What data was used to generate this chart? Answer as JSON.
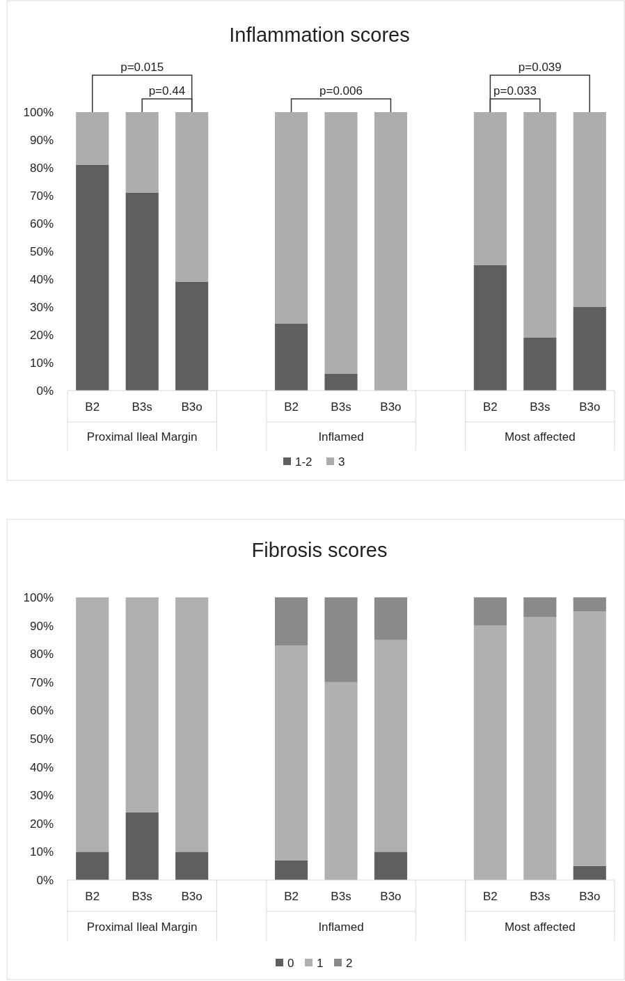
{
  "chart_data": [
    {
      "type": "bar",
      "title": "Inflammation scores",
      "stacked": true,
      "legend": "bottom",
      "categories": [
        "B2",
        "B3s",
        "B3o",
        null,
        "B2",
        "B3s",
        "B3o",
        null,
        "B2",
        "B3s",
        "B3o"
      ],
      "series": [
        {
          "name": "1-2",
          "color": "#5f5f5f",
          "values": [
            81,
            71,
            39,
            null,
            24,
            6,
            0,
            null,
            45,
            19,
            30
          ]
        },
        {
          "name": "3",
          "color": "#adadad",
          "values": [
            19,
            29,
            61,
            null,
            76,
            94,
            100,
            null,
            55,
            81,
            70
          ]
        }
      ],
      "ylim": [
        0,
        100
      ],
      "yticks": [
        {
          "value": 0,
          "label": "0%"
        },
        {
          "value": 10,
          "label": "10%"
        },
        {
          "value": 20,
          "label": "20%"
        },
        {
          "value": 30,
          "label": "30%"
        },
        {
          "value": 40,
          "label": "40%"
        },
        {
          "value": 50,
          "label": "50%"
        },
        {
          "value": 60,
          "label": "60%"
        },
        {
          "value": 70,
          "label": "70%"
        },
        {
          "value": 80,
          "label": "80%"
        },
        {
          "value": 90,
          "label": "90%"
        },
        {
          "value": 100,
          "label": "100%"
        }
      ],
      "annotations": [
        "p=0.015",
        "p=0.44",
        "p=0.006",
        "p=0.033",
        "p=0.039",
        "Proximal Ileal Margin",
        "Inflamed",
        "Most affected"
      ]
    },
    {
      "type": "bar",
      "title": "Fibrosis scores",
      "stacked": true,
      "legend": "bottom",
      "categories": [
        "B2",
        "B3s",
        "B3o",
        null,
        "B2",
        "B3s",
        "B3o",
        null,
        "B2",
        "B3s",
        "B3o"
      ],
      "series": [
        {
          "name": "0",
          "color": "#5f5f5f",
          "values": [
            10,
            24,
            10,
            null,
            7,
            0,
            10,
            null,
            0,
            0,
            5
          ]
        },
        {
          "name": "1",
          "color": "#b0b0b0",
          "values": [
            90,
            76,
            90,
            null,
            76,
            70,
            75,
            null,
            90,
            93,
            90
          ]
        },
        {
          "name": "2",
          "color": "#8a8a8a",
          "values": [
            0,
            0,
            0,
            null,
            17,
            30,
            15,
            null,
            10,
            7,
            5
          ]
        }
      ],
      "ylim": [
        0,
        100
      ],
      "yticks": [
        {
          "value": 0,
          "label": "0%"
        },
        {
          "value": 10,
          "label": "10%"
        },
        {
          "value": 20,
          "label": "20%"
        },
        {
          "value": 30,
          "label": "30%"
        },
        {
          "value": 40,
          "label": "40%"
        },
        {
          "value": 50,
          "label": "50%"
        },
        {
          "value": 60,
          "label": "60%"
        },
        {
          "value": 70,
          "label": "70%"
        },
        {
          "value": 80,
          "label": "80%"
        },
        {
          "value": 90,
          "label": "90%"
        },
        {
          "value": 100,
          "label": "100%"
        }
      ],
      "annotations": [
        "Proximal Ileal Margin",
        "Inflamed",
        "Most affected"
      ]
    }
  ]
}
